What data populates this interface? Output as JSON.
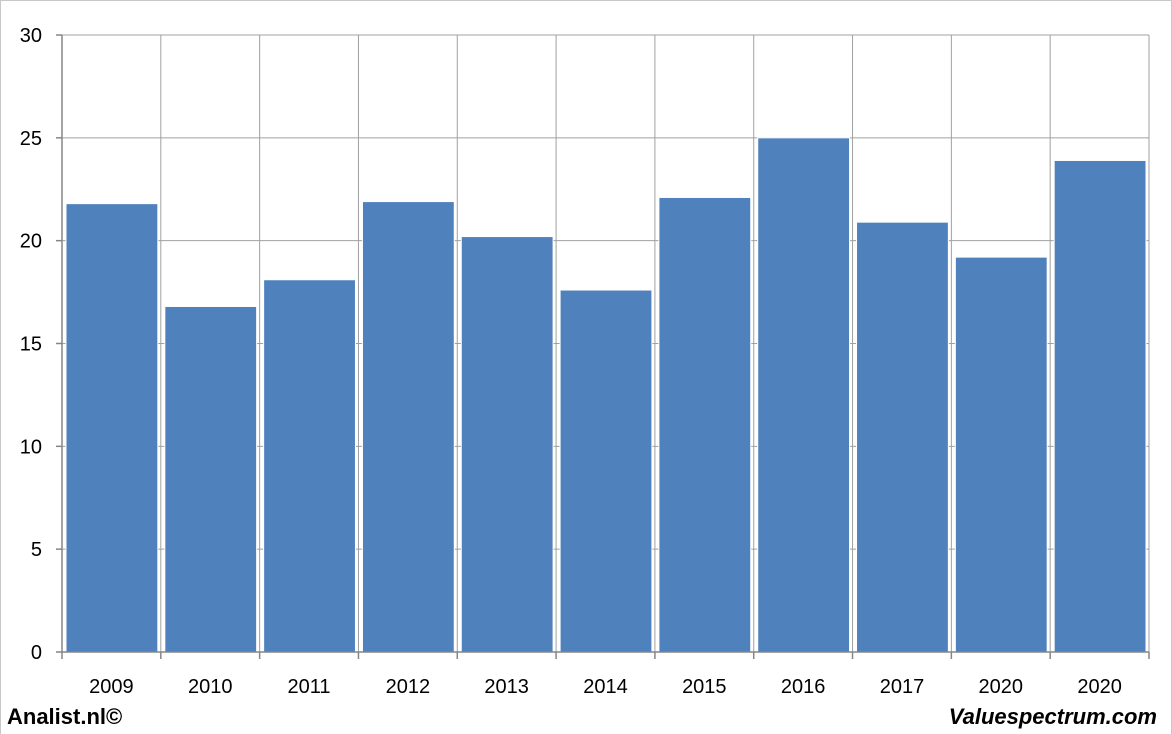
{
  "chart_data": {
    "type": "bar",
    "categories": [
      "2009",
      "2010",
      "2011",
      "2012",
      "2013",
      "2014",
      "2015",
      "2016",
      "2017",
      "2020",
      "2020"
    ],
    "values": [
      21.8,
      16.8,
      18.1,
      21.9,
      20.2,
      17.6,
      22.1,
      25.0,
      20.9,
      19.2,
      23.9
    ],
    "title": "",
    "xlabel": "",
    "ylabel": "",
    "ylim": [
      0,
      30
    ],
    "yticks": [
      "0",
      "5",
      "10",
      "15",
      "20",
      "25",
      "30"
    ],
    "grid": true,
    "bar_color": "#4f81bd",
    "grid_color": "#a0a0a0"
  },
  "footer": {
    "left_text": "Analist.nl©",
    "right_text": "Valuespectrum.com"
  }
}
